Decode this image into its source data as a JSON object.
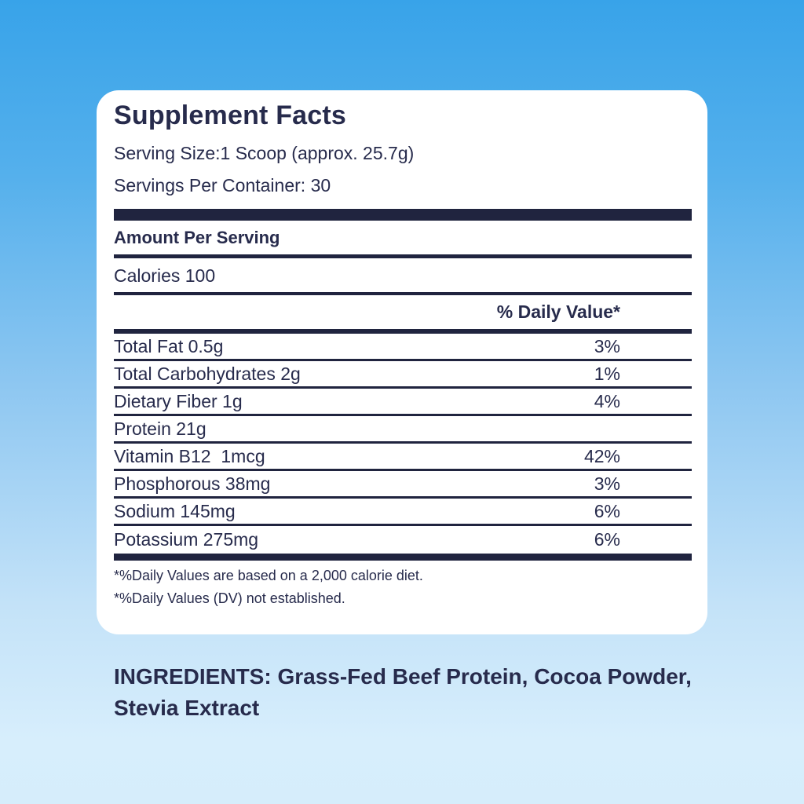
{
  "panel": {
    "title": "Supplement Facts",
    "serving_size": "Serving Size:1 Scoop (approx. 25.7g)",
    "servings_per_container": "Servings Per Container: 30",
    "amount_per_serving": "Amount Per Serving",
    "calories": "Calories 100",
    "daily_value_header": "% Daily Value*",
    "rows": [
      {
        "label": "Total Fat 0.5g",
        "value": "3%"
      },
      {
        "label": "Total Carbohydrates 2g",
        "value": "1%"
      },
      {
        "label": "Dietary Fiber 1g",
        "value": "4%"
      },
      {
        "label": "Protein 21g",
        "value": ""
      },
      {
        "label": "Vitamin B12  1mcg",
        "value": "42%"
      },
      {
        "label": "Phosphorous 38mg",
        "value": "3%"
      },
      {
        "label": "Sodium 145mg",
        "value": "6%"
      },
      {
        "label": "Potassium 275mg",
        "value": "6%"
      }
    ],
    "footnotes": [
      "*%Daily Values are based on a 2,000 calorie diet.",
      "*%Daily Values (DV) not established."
    ]
  },
  "ingredients": {
    "text": "INGREDIENTS: Grass-Fed Beef Protein, Cocoa Powder, Stevia Extract"
  },
  "colors": {
    "text_navy": "#272b4c",
    "bar_navy": "#20243f",
    "card_white": "#ffffff",
    "background_top_blue": "#38a3e9",
    "background_bottom_blue": "#d6edfb"
  }
}
